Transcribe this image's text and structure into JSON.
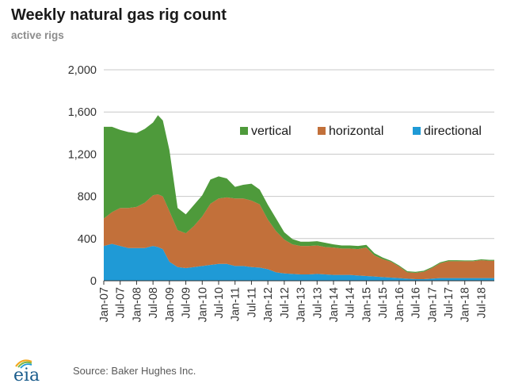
{
  "header": {
    "title": "Weekly natural gas rig count",
    "subtitle": "active rigs"
  },
  "footer": {
    "logo_text": "eia",
    "source": "Source: Baker Hughes Inc."
  },
  "colors": {
    "vertical": "#4e9a3b",
    "horizontal": "#c2703a",
    "directional": "#1f9ad6",
    "grid": "#c8c8c8",
    "axis": "#333333"
  },
  "chart_data": {
    "type": "area",
    "stacked": true,
    "title": "Weekly natural gas rig count",
    "ylabel": "active rigs",
    "ylim": [
      0,
      2000
    ],
    "yticks": [
      0,
      400,
      800,
      1200,
      1600,
      2000
    ],
    "ytick_labels": [
      "0",
      "400",
      "800",
      "1,200",
      "1,600",
      "2,000"
    ],
    "xlim": [
      2007.0,
      2018.9
    ],
    "xtick_labels": [
      "Jan-07",
      "Jul-07",
      "Jan-08",
      "Jul-08",
      "Jan-09",
      "Jul-09",
      "Jan-10",
      "Jul-10",
      "Jan-11",
      "Jul-11",
      "Jan-12",
      "Jul-12",
      "Jan-13",
      "Jul-13",
      "Jan-14",
      "Jul-14",
      "Jan-15",
      "Jul-15",
      "Jan-16",
      "Jul-16",
      "Jan-17",
      "Jul-17",
      "Jan-18",
      "Jul-18"
    ],
    "grid": true,
    "legend_position": "top-right",
    "x": [
      2007.0,
      2007.25,
      2007.5,
      2007.75,
      2008.0,
      2008.25,
      2008.5,
      2008.65,
      2008.8,
      2009.0,
      2009.25,
      2009.5,
      2009.75,
      2010.0,
      2010.25,
      2010.5,
      2010.75,
      2011.0,
      2011.25,
      2011.5,
      2011.75,
      2012.0,
      2012.25,
      2012.5,
      2012.75,
      2013.0,
      2013.25,
      2013.5,
      2013.75,
      2014.0,
      2014.25,
      2014.5,
      2014.75,
      2015.0,
      2015.25,
      2015.5,
      2015.75,
      2016.0,
      2016.25,
      2016.5,
      2016.75,
      2017.0,
      2017.25,
      2017.5,
      2017.75,
      2018.0,
      2018.25,
      2018.5,
      2018.75,
      2018.9
    ],
    "series": [
      {
        "name": "directional",
        "values": [
          330,
          350,
          330,
          310,
          310,
          310,
          330,
          320,
          300,
          180,
          130,
          120,
          130,
          140,
          150,
          160,
          160,
          140,
          140,
          130,
          125,
          110,
          80,
          70,
          65,
          60,
          60,
          65,
          60,
          55,
          55,
          55,
          50,
          45,
          40,
          35,
          30,
          25,
          20,
          15,
          15,
          20,
          25,
          25,
          25,
          25,
          25,
          25,
          25,
          25
        ]
      },
      {
        "name": "horizontal",
        "values": [
          260,
          300,
          360,
          380,
          390,
          430,
          480,
          500,
          500,
          480,
          350,
          330,
          390,
          470,
          580,
          620,
          630,
          640,
          640,
          630,
          600,
          470,
          390,
          320,
          280,
          270,
          270,
          270,
          260,
          260,
          250,
          250,
          250,
          270,
          200,
          170,
          150,
          110,
          60,
          60,
          70,
          100,
          140,
          160,
          160,
          160,
          160,
          170,
          165,
          165
        ]
      },
      {
        "name": "vertical",
        "values": [
          870,
          810,
          740,
          720,
          700,
          700,
          690,
          750,
          720,
          580,
          210,
          180,
          200,
          200,
          230,
          210,
          180,
          110,
          130,
          160,
          140,
          140,
          120,
          70,
          50,
          40,
          40,
          40,
          40,
          30,
          30,
          30,
          30,
          25,
          20,
          15,
          10,
          10,
          10,
          10,
          10,
          10,
          10,
          10,
          10,
          8,
          8,
          8,
          8,
          8
        ]
      }
    ]
  }
}
